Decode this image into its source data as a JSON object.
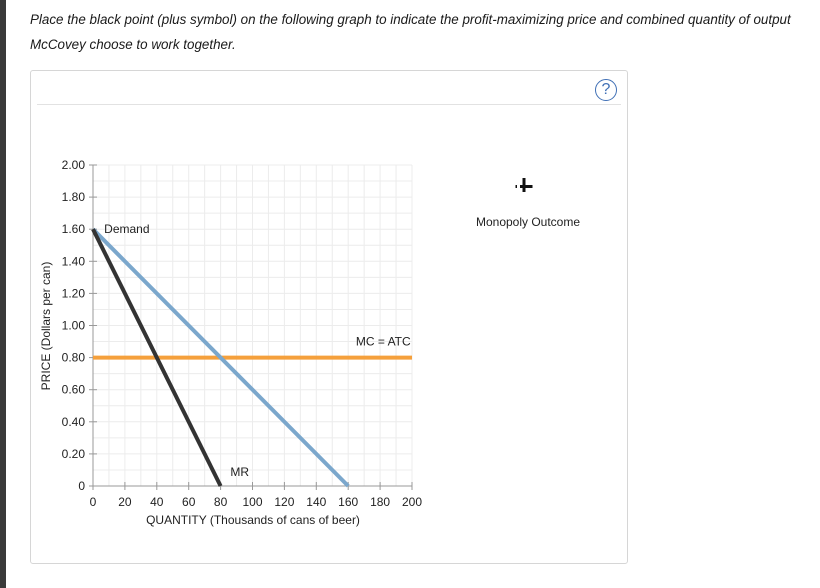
{
  "instructions": {
    "line1": "Place the black point (plus symbol) on the following graph to indicate the profit-maximizing price and combined quantity of output",
    "line2": "McCovey choose to work together."
  },
  "help_button_label": "?",
  "palette": {
    "label": "Monopoly Outcome",
    "icon": "plus-symbol-icon"
  },
  "chart_data": {
    "type": "line",
    "xlabel": "QUANTITY (Thousands of cans of beer)",
    "ylabel": "PRICE (Dollars per can)",
    "xlim": [
      0,
      200
    ],
    "ylim": [
      0,
      2.0
    ],
    "x_ticks": [
      "0",
      "20",
      "40",
      "60",
      "80",
      "100",
      "120",
      "140",
      "160",
      "180",
      "200"
    ],
    "y_ticks": [
      "0",
      "0.20",
      "0.40",
      "0.60",
      "0.80",
      "1.00",
      "1.20",
      "1.40",
      "1.60",
      "1.80",
      "2.00"
    ],
    "grid": true,
    "series": [
      {
        "name": "Demand",
        "color": "#7ba7cc",
        "points": [
          [
            0,
            1.6
          ],
          [
            160,
            0
          ]
        ]
      },
      {
        "name": "MR",
        "color": "#333333",
        "points": [
          [
            0,
            1.6
          ],
          [
            80,
            0
          ]
        ]
      },
      {
        "name": "MC = ATC",
        "color": "#f5a03c",
        "points": [
          [
            0,
            0.8
          ],
          [
            200,
            0.8
          ]
        ]
      }
    ]
  }
}
